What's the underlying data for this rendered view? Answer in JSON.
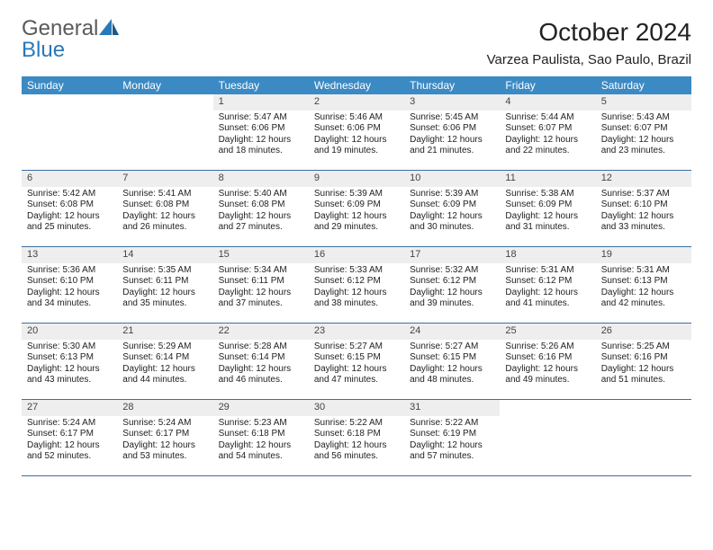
{
  "brand": {
    "part1": "General",
    "part2": "Blue"
  },
  "title": "October 2024",
  "location": "Varzea Paulista, Sao Paulo, Brazil",
  "colors": {
    "header_bg": "#3b8ac4",
    "header_text": "#ffffff",
    "daynum_bg": "#eeeeee",
    "divider": "#3b6fa0",
    "logo_gray": "#5a5a5a",
    "logo_blue": "#2b78b8"
  },
  "days_of_week": [
    "Sunday",
    "Monday",
    "Tuesday",
    "Wednesday",
    "Thursday",
    "Friday",
    "Saturday"
  ],
  "weeks": [
    [
      null,
      null,
      {
        "n": "1",
        "sr": "Sunrise: 5:47 AM",
        "ss": "Sunset: 6:06 PM",
        "dl": "Daylight: 12 hours and 18 minutes."
      },
      {
        "n": "2",
        "sr": "Sunrise: 5:46 AM",
        "ss": "Sunset: 6:06 PM",
        "dl": "Daylight: 12 hours and 19 minutes."
      },
      {
        "n": "3",
        "sr": "Sunrise: 5:45 AM",
        "ss": "Sunset: 6:06 PM",
        "dl": "Daylight: 12 hours and 21 minutes."
      },
      {
        "n": "4",
        "sr": "Sunrise: 5:44 AM",
        "ss": "Sunset: 6:07 PM",
        "dl": "Daylight: 12 hours and 22 minutes."
      },
      {
        "n": "5",
        "sr": "Sunrise: 5:43 AM",
        "ss": "Sunset: 6:07 PM",
        "dl": "Daylight: 12 hours and 23 minutes."
      }
    ],
    [
      {
        "n": "6",
        "sr": "Sunrise: 5:42 AM",
        "ss": "Sunset: 6:08 PM",
        "dl": "Daylight: 12 hours and 25 minutes."
      },
      {
        "n": "7",
        "sr": "Sunrise: 5:41 AM",
        "ss": "Sunset: 6:08 PM",
        "dl": "Daylight: 12 hours and 26 minutes."
      },
      {
        "n": "8",
        "sr": "Sunrise: 5:40 AM",
        "ss": "Sunset: 6:08 PM",
        "dl": "Daylight: 12 hours and 27 minutes."
      },
      {
        "n": "9",
        "sr": "Sunrise: 5:39 AM",
        "ss": "Sunset: 6:09 PM",
        "dl": "Daylight: 12 hours and 29 minutes."
      },
      {
        "n": "10",
        "sr": "Sunrise: 5:39 AM",
        "ss": "Sunset: 6:09 PM",
        "dl": "Daylight: 12 hours and 30 minutes."
      },
      {
        "n": "11",
        "sr": "Sunrise: 5:38 AM",
        "ss": "Sunset: 6:09 PM",
        "dl": "Daylight: 12 hours and 31 minutes."
      },
      {
        "n": "12",
        "sr": "Sunrise: 5:37 AM",
        "ss": "Sunset: 6:10 PM",
        "dl": "Daylight: 12 hours and 33 minutes."
      }
    ],
    [
      {
        "n": "13",
        "sr": "Sunrise: 5:36 AM",
        "ss": "Sunset: 6:10 PM",
        "dl": "Daylight: 12 hours and 34 minutes."
      },
      {
        "n": "14",
        "sr": "Sunrise: 5:35 AM",
        "ss": "Sunset: 6:11 PM",
        "dl": "Daylight: 12 hours and 35 minutes."
      },
      {
        "n": "15",
        "sr": "Sunrise: 5:34 AM",
        "ss": "Sunset: 6:11 PM",
        "dl": "Daylight: 12 hours and 37 minutes."
      },
      {
        "n": "16",
        "sr": "Sunrise: 5:33 AM",
        "ss": "Sunset: 6:12 PM",
        "dl": "Daylight: 12 hours and 38 minutes."
      },
      {
        "n": "17",
        "sr": "Sunrise: 5:32 AM",
        "ss": "Sunset: 6:12 PM",
        "dl": "Daylight: 12 hours and 39 minutes."
      },
      {
        "n": "18",
        "sr": "Sunrise: 5:31 AM",
        "ss": "Sunset: 6:12 PM",
        "dl": "Daylight: 12 hours and 41 minutes."
      },
      {
        "n": "19",
        "sr": "Sunrise: 5:31 AM",
        "ss": "Sunset: 6:13 PM",
        "dl": "Daylight: 12 hours and 42 minutes."
      }
    ],
    [
      {
        "n": "20",
        "sr": "Sunrise: 5:30 AM",
        "ss": "Sunset: 6:13 PM",
        "dl": "Daylight: 12 hours and 43 minutes."
      },
      {
        "n": "21",
        "sr": "Sunrise: 5:29 AM",
        "ss": "Sunset: 6:14 PM",
        "dl": "Daylight: 12 hours and 44 minutes."
      },
      {
        "n": "22",
        "sr": "Sunrise: 5:28 AM",
        "ss": "Sunset: 6:14 PM",
        "dl": "Daylight: 12 hours and 46 minutes."
      },
      {
        "n": "23",
        "sr": "Sunrise: 5:27 AM",
        "ss": "Sunset: 6:15 PM",
        "dl": "Daylight: 12 hours and 47 minutes."
      },
      {
        "n": "24",
        "sr": "Sunrise: 5:27 AM",
        "ss": "Sunset: 6:15 PM",
        "dl": "Daylight: 12 hours and 48 minutes."
      },
      {
        "n": "25",
        "sr": "Sunrise: 5:26 AM",
        "ss": "Sunset: 6:16 PM",
        "dl": "Daylight: 12 hours and 49 minutes."
      },
      {
        "n": "26",
        "sr": "Sunrise: 5:25 AM",
        "ss": "Sunset: 6:16 PM",
        "dl": "Daylight: 12 hours and 51 minutes."
      }
    ],
    [
      {
        "n": "27",
        "sr": "Sunrise: 5:24 AM",
        "ss": "Sunset: 6:17 PM",
        "dl": "Daylight: 12 hours and 52 minutes."
      },
      {
        "n": "28",
        "sr": "Sunrise: 5:24 AM",
        "ss": "Sunset: 6:17 PM",
        "dl": "Daylight: 12 hours and 53 minutes."
      },
      {
        "n": "29",
        "sr": "Sunrise: 5:23 AM",
        "ss": "Sunset: 6:18 PM",
        "dl": "Daylight: 12 hours and 54 minutes."
      },
      {
        "n": "30",
        "sr": "Sunrise: 5:22 AM",
        "ss": "Sunset: 6:18 PM",
        "dl": "Daylight: 12 hours and 56 minutes."
      },
      {
        "n": "31",
        "sr": "Sunrise: 5:22 AM",
        "ss": "Sunset: 6:19 PM",
        "dl": "Daylight: 12 hours and 57 minutes."
      },
      null,
      null
    ]
  ]
}
